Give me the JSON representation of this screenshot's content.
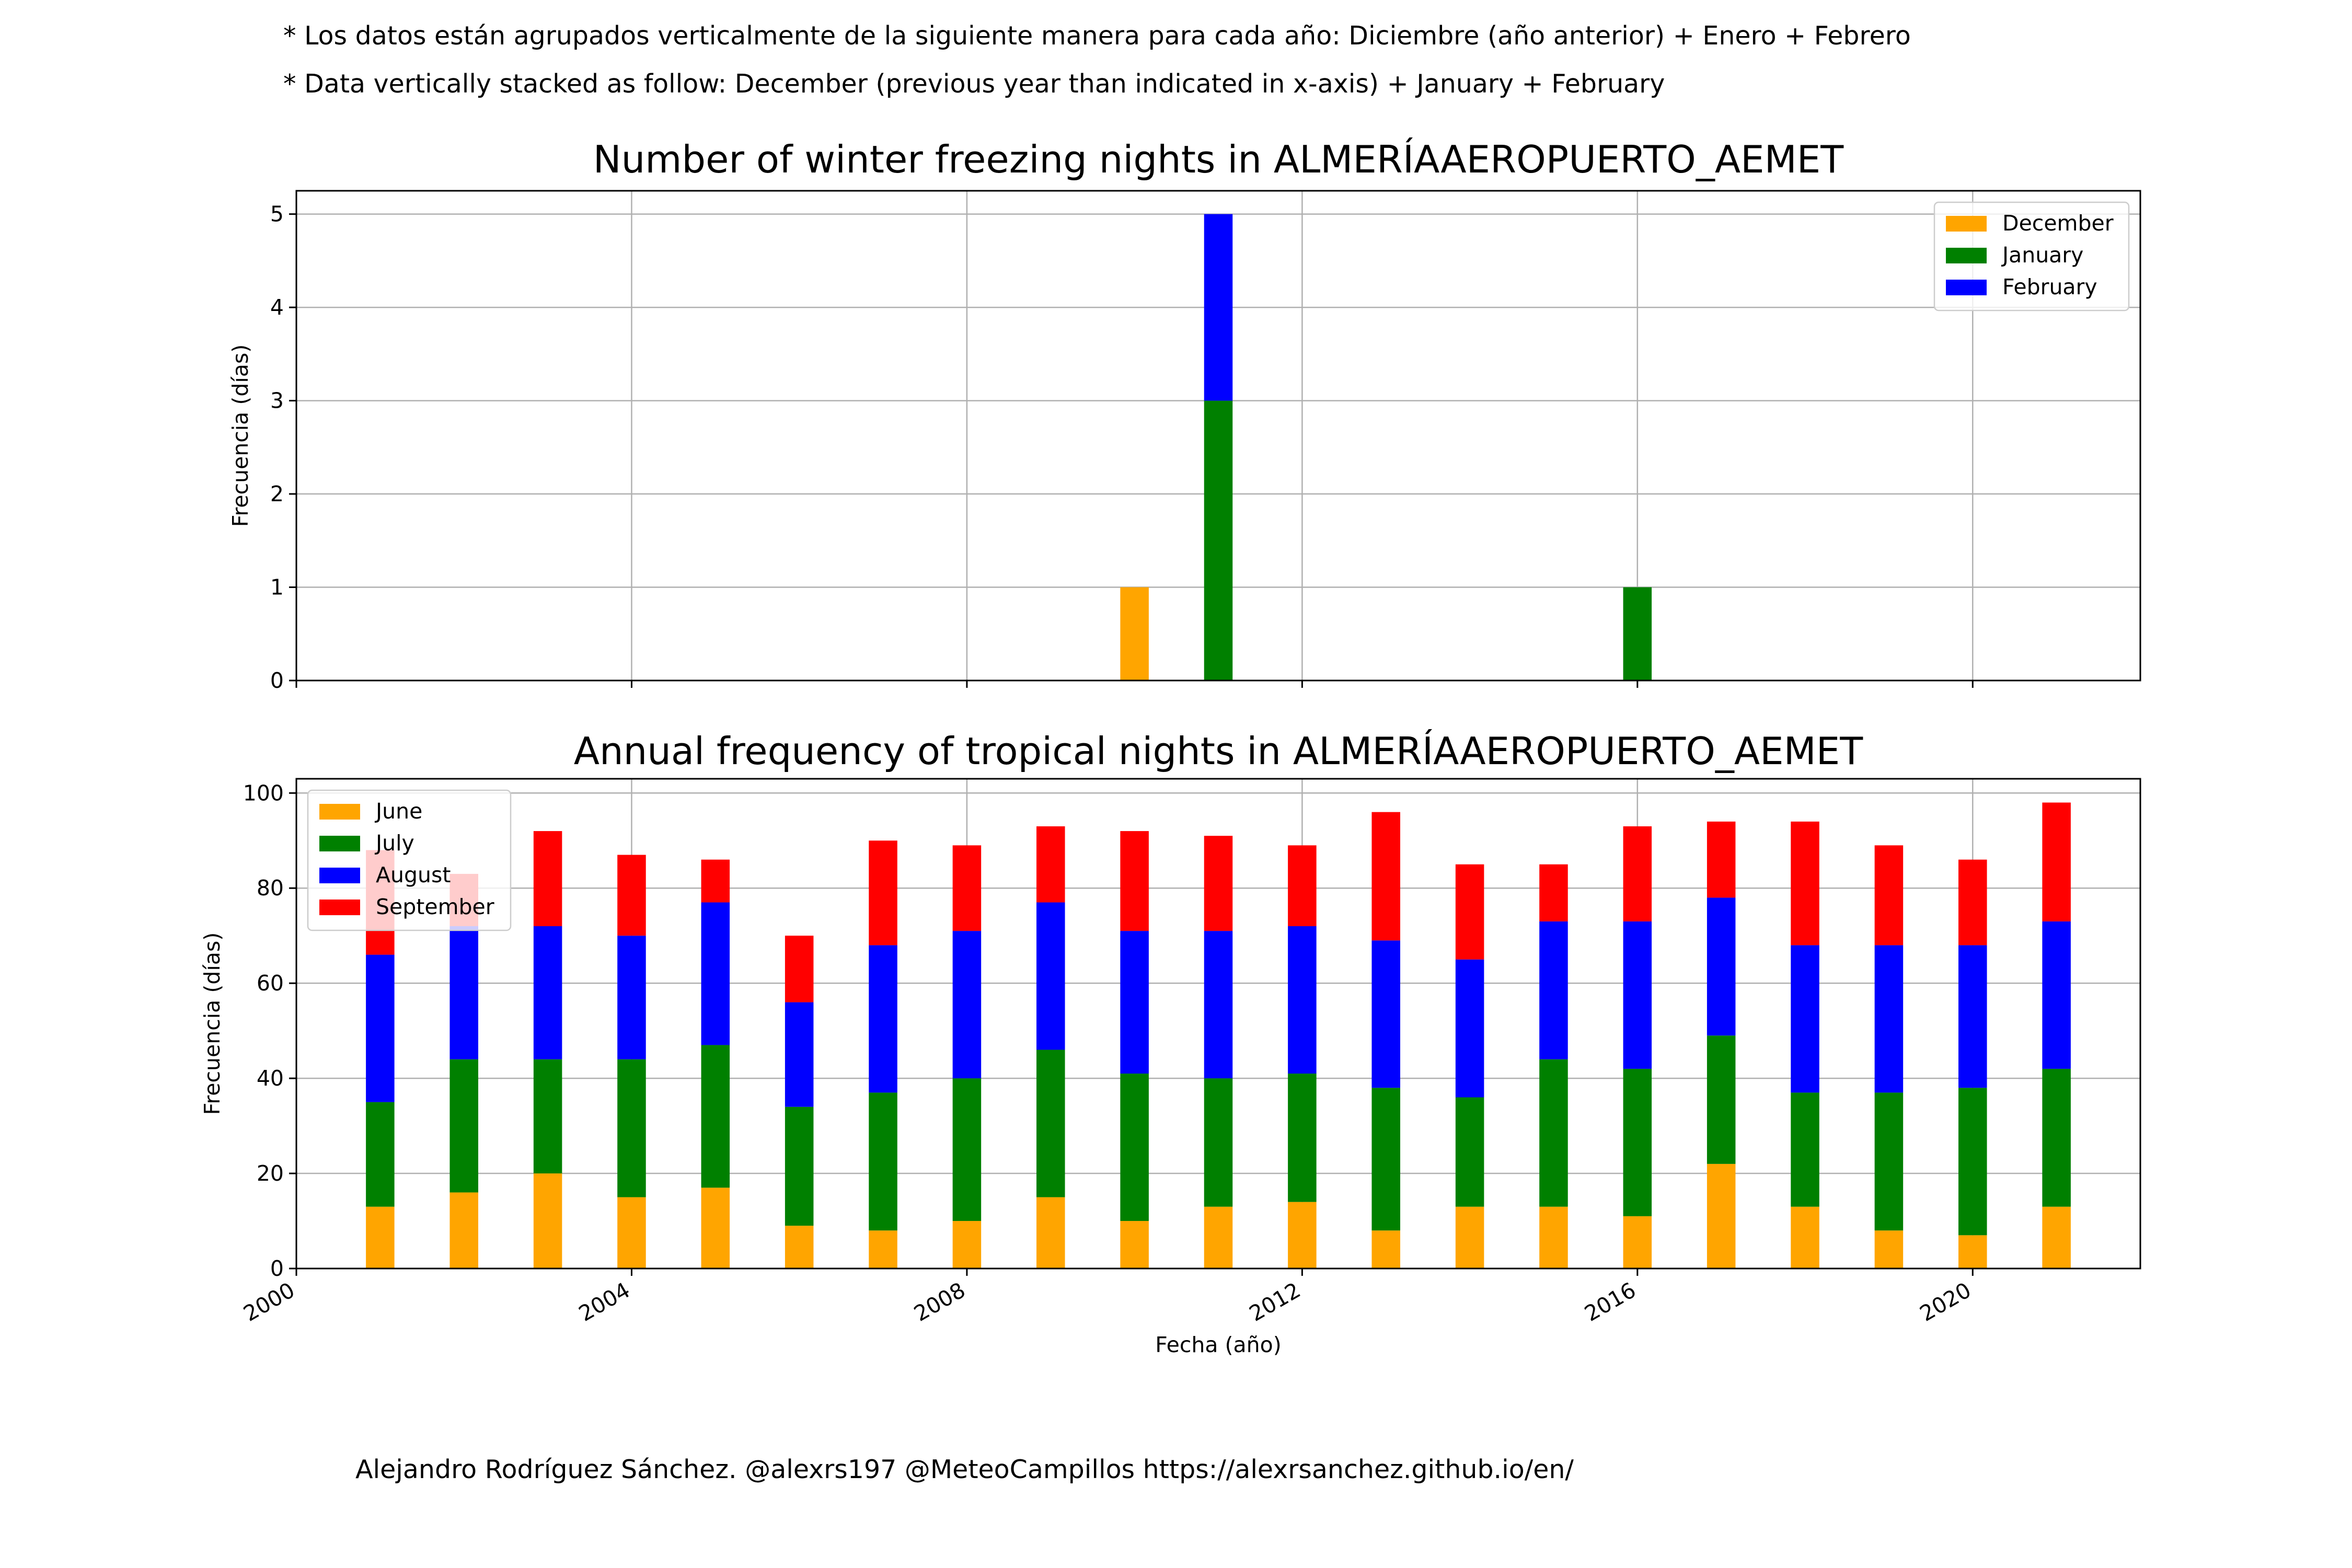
{
  "notes": {
    "es": "* Los datos están agrupados verticalmente de la siguiente manera para cada año: Diciembre (año anterior) + Enero  + Febrero",
    "en": "* Data vertically stacked as follow: December (previous year than indicated in x-axis) + January  + February"
  },
  "credit": "Alejandro Rodríguez Sánchez. @alexrs197 @MeteoCampillos   https://alexrsanchez.github.io/en/",
  "colors": {
    "orange": "#FFA500",
    "green": "#008000",
    "blue": "#0000FF",
    "red": "#FF0000"
  },
  "chart_data": [
    {
      "type": "bar",
      "stacked": true,
      "title": "Number of winter freezing nights in ALMERÍAAEROPUERTO_AEMET",
      "ylabel": "Frecuencia (días)",
      "xlabel": "",
      "xlim": [
        2000,
        2022
      ],
      "ylim": [
        0,
        5.25
      ],
      "xticks": [
        2000,
        2004,
        2008,
        2012,
        2016,
        2020
      ],
      "yticks": [
        0,
        1,
        2,
        3,
        4,
        5
      ],
      "grid": true,
      "legend": "top-right",
      "x": [
        2010,
        2011,
        2016
      ],
      "series": [
        {
          "name": "December",
          "color": "#FFA500",
          "values": [
            1,
            0,
            0
          ]
        },
        {
          "name": "January",
          "color": "#008000",
          "values": [
            0,
            3,
            1
          ]
        },
        {
          "name": "February",
          "color": "#0000FF",
          "values": [
            0,
            2,
            0
          ]
        }
      ]
    },
    {
      "type": "bar",
      "stacked": true,
      "title": "Annual frequency of tropical nights in ALMERÍAAEROPUERTO_AEMET",
      "ylabel": "Frecuencia (días)",
      "xlabel": "Fecha (año)",
      "xlim": [
        2000,
        2022
      ],
      "ylim": [
        0,
        103
      ],
      "xticks": [
        2000,
        2004,
        2008,
        2012,
        2016,
        2020
      ],
      "yticks": [
        0,
        20,
        40,
        60,
        80,
        100
      ],
      "grid": true,
      "legend": "top-left",
      "x": [
        2001,
        2002,
        2003,
        2004,
        2005,
        2006,
        2007,
        2008,
        2009,
        2010,
        2011,
        2012,
        2013,
        2014,
        2015,
        2016,
        2017,
        2018,
        2019,
        2020,
        2021
      ],
      "series": [
        {
          "name": "June",
          "color": "#FFA500",
          "values": [
            13,
            16,
            20,
            15,
            17,
            9,
            8,
            10,
            15,
            10,
            13,
            14,
            8,
            13,
            13,
            11,
            22,
            13,
            8,
            7,
            13
          ]
        },
        {
          "name": "July",
          "color": "#008000",
          "values": [
            22,
            28,
            24,
            29,
            30,
            25,
            29,
            30,
            31,
            31,
            27,
            27,
            30,
            23,
            31,
            31,
            27,
            24,
            29,
            31,
            29
          ]
        },
        {
          "name": "August",
          "color": "#0000FF",
          "values": [
            31,
            28,
            28,
            26,
            30,
            22,
            31,
            31,
            31,
            30,
            31,
            31,
            31,
            29,
            29,
            31,
            29,
            31,
            31,
            30,
            31
          ]
        },
        {
          "name": "September",
          "color": "#FF0000",
          "values": [
            22,
            11,
            20,
            17,
            9,
            14,
            22,
            18,
            16,
            21,
            20,
            17,
            27,
            20,
            12,
            20,
            16,
            26,
            21,
            18,
            25
          ]
        }
      ]
    }
  ]
}
